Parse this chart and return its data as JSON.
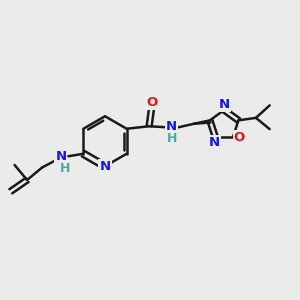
{
  "bg_color": "#ebebeb",
  "black": "#1a1a1a",
  "blue": "#1414e6",
  "red": "#e61414",
  "teal": "#3ab0a0",
  "lw": 1.8,
  "fs": 9.5,
  "xlim": [
    0,
    12
  ],
  "ylim": [
    0,
    10
  ]
}
